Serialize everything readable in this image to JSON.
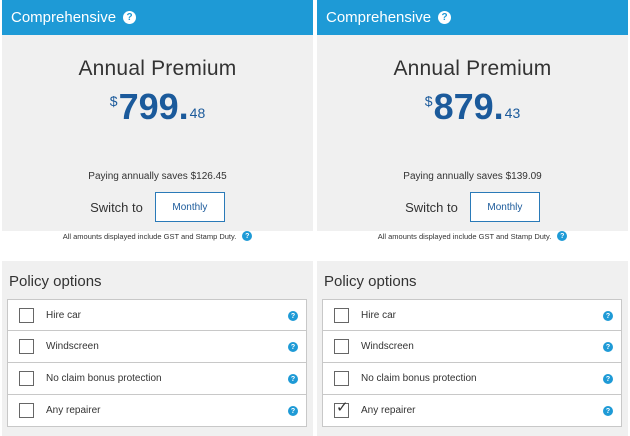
{
  "plans": [
    {
      "header": "Comprehensive",
      "premium_title": "Annual Premium",
      "currency": "$",
      "dollars": "799",
      "cents": "48",
      "saves": "Paying annually saves $126.45",
      "switch_label": "Switch to",
      "switch_button": "Monthly",
      "notice": "All amounts displayed include GST and Stamp Duty.",
      "options_title": "Policy options",
      "options": [
        {
          "label": "Hire car",
          "checked": false
        },
        {
          "label": "Windscreen",
          "checked": false
        },
        {
          "label": "No claim bonus protection",
          "checked": false
        },
        {
          "label": "Any repairer",
          "checked": false
        }
      ]
    },
    {
      "header": "Comprehensive",
      "premium_title": "Annual Premium",
      "currency": "$",
      "dollars": "879",
      "cents": "43",
      "saves": "Paying annually saves $139.09",
      "switch_label": "Switch to",
      "switch_button": "Monthly",
      "notice": "All amounts displayed include GST and Stamp Duty.",
      "options_title": "Policy options",
      "options": [
        {
          "label": "Hire car",
          "checked": false
        },
        {
          "label": "Windscreen",
          "checked": false
        },
        {
          "label": "No claim bonus protection",
          "checked": false
        },
        {
          "label": "Any repairer",
          "checked": true
        }
      ]
    }
  ],
  "help_glyph": "?",
  "tick_glyph": "✓",
  "colors": {
    "header_blue": "#1e9ad6",
    "price_blue": "#1b5a9b",
    "panel_grey": "#f0f0f0"
  }
}
